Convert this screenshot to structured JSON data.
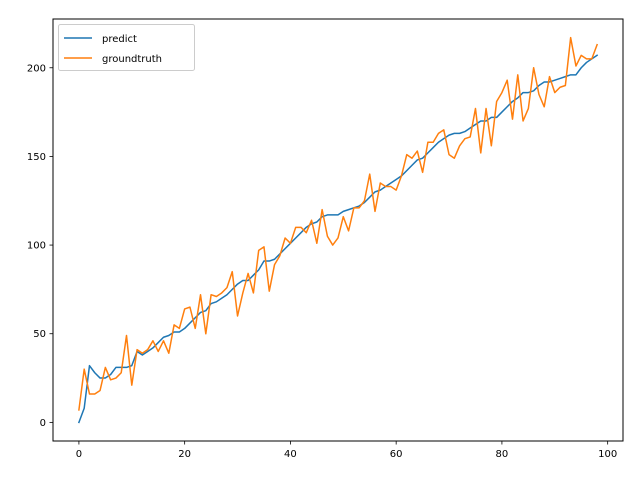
{
  "chart_data": {
    "type": "line",
    "title": "",
    "xlabel": "",
    "ylabel": "",
    "xlim": [
      -4.9,
      102.9
    ],
    "ylim": [
      -10.5,
      227.5
    ],
    "xticks": [
      0,
      20,
      40,
      60,
      80,
      100
    ],
    "yticks": [
      0,
      50,
      100,
      150,
      200
    ],
    "xtick_labels": [
      "0",
      "20",
      "40",
      "60",
      "80",
      "100"
    ],
    "ytick_labels": [
      "0",
      "50",
      "100",
      "150",
      "200"
    ],
    "grid": false,
    "legend_position": "upper-left",
    "series": [
      {
        "name": "predict",
        "color": "#1f77b4",
        "x": [
          0,
          1,
          2,
          3,
          4,
          5,
          6,
          7,
          8,
          9,
          10,
          11,
          12,
          13,
          14,
          15,
          16,
          17,
          18,
          19,
          20,
          21,
          22,
          23,
          24,
          25,
          26,
          27,
          28,
          29,
          30,
          31,
          32,
          33,
          34,
          35,
          36,
          37,
          38,
          39,
          40,
          41,
          42,
          43,
          44,
          45,
          46,
          47,
          48,
          49,
          50,
          51,
          52,
          53,
          54,
          55,
          56,
          57,
          58,
          59,
          60,
          61,
          62,
          63,
          64,
          65,
          66,
          67,
          68,
          69,
          70,
          71,
          72,
          73,
          74,
          75,
          76,
          77,
          78,
          79,
          80,
          81,
          82,
          83,
          84,
          85,
          86,
          87,
          88,
          89,
          90,
          91,
          92,
          93,
          94,
          95,
          96,
          97,
          98
        ],
        "y": [
          0,
          8,
          32,
          28,
          25,
          25,
          27,
          31,
          31,
          31,
          32,
          40,
          38,
          40,
          42,
          45,
          48,
          49,
          51,
          51,
          53,
          56,
          59,
          62,
          63,
          67,
          68,
          70,
          72,
          75,
          78,
          80,
          80,
          83,
          86,
          91,
          91,
          92,
          95,
          98,
          101,
          104,
          107,
          110,
          112,
          113,
          116,
          117,
          117,
          117,
          119,
          120,
          121,
          122,
          124,
          127,
          130,
          131,
          133,
          135,
          137,
          139,
          142,
          145,
          148,
          149,
          152,
          155,
          158,
          160,
          162,
          163,
          163,
          164,
          166,
          168,
          170,
          170,
          172,
          172,
          175,
          178,
          181,
          183,
          186,
          186,
          187,
          190,
          192,
          192,
          193,
          194,
          195,
          196,
          196,
          200,
          203,
          205,
          207
        ]
      },
      {
        "name": "groundtruth",
        "color": "#ff7f0e",
        "x": [
          0,
          1,
          2,
          3,
          4,
          5,
          6,
          7,
          8,
          9,
          10,
          11,
          12,
          13,
          14,
          15,
          16,
          17,
          18,
          19,
          20,
          21,
          22,
          23,
          24,
          25,
          26,
          27,
          28,
          29,
          30,
          31,
          32,
          33,
          34,
          35,
          36,
          37,
          38,
          39,
          40,
          41,
          42,
          43,
          44,
          45,
          46,
          47,
          48,
          49,
          50,
          51,
          52,
          53,
          54,
          55,
          56,
          57,
          58,
          59,
          60,
          61,
          62,
          63,
          64,
          65,
          66,
          67,
          68,
          69,
          70,
          71,
          72,
          73,
          74,
          75,
          76,
          77,
          78,
          79,
          80,
          81,
          82,
          83,
          84,
          85,
          86,
          87,
          88,
          89,
          90,
          91,
          92,
          93,
          94,
          95,
          96,
          97,
          98
        ],
        "y": [
          7,
          30,
          16,
          16,
          18,
          31,
          24,
          25,
          28,
          49,
          21,
          41,
          39,
          41,
          46,
          40,
          46,
          39,
          55,
          53,
          64,
          65,
          53,
          72,
          50,
          72,
          71,
          73,
          76,
          85,
          60,
          73,
          84,
          73,
          97,
          99,
          74,
          89,
          94,
          104,
          101,
          110,
          110,
          107,
          114,
          101,
          120,
          105,
          100,
          104,
          116,
          108,
          121,
          121,
          125,
          140,
          119,
          135,
          133,
          133,
          131,
          139,
          151,
          149,
          153,
          141,
          158,
          158,
          163,
          165,
          151,
          149,
          156,
          160,
          161,
          177,
          152,
          177,
          156,
          181,
          186,
          193,
          171,
          196,
          170,
          177,
          200,
          185,
          178,
          195,
          186,
          189,
          190,
          217,
          201,
          207,
          205,
          205,
          213
        ]
      }
    ]
  }
}
